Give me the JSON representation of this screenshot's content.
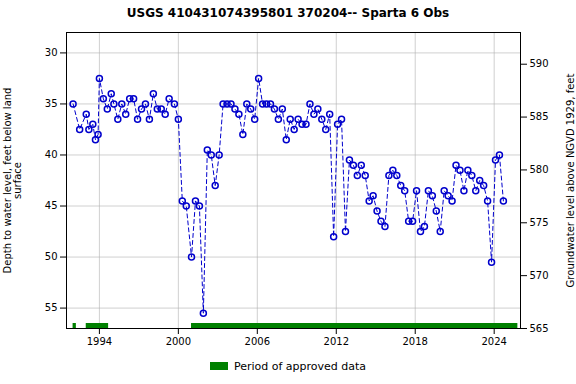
{
  "chart_data": {
    "type": "line",
    "title": "USGS 410431074395801 370204-- Sparta 6 Obs",
    "ylabel": "Depth to water level, feet below land\nsurface",
    "y2label": "Groundwater level above NGVD 1929, feet",
    "x": [
      1992.0,
      1992.5,
      1993.0,
      1993.2,
      1993.5,
      1993.7,
      1993.9,
      1994.0,
      1994.3,
      1994.6,
      1994.9,
      1995.1,
      1995.4,
      1995.7,
      1996.0,
      1996.3,
      1996.6,
      1996.9,
      1997.2,
      1997.5,
      1997.8,
      1998.1,
      1998.4,
      1998.7,
      1999.0,
      1999.3,
      1999.7,
      2000.0,
      2000.3,
      2000.6,
      2001.0,
      2001.3,
      2001.6,
      2001.9,
      2002.2,
      2002.5,
      2002.8,
      2003.1,
      2003.4,
      2003.7,
      2004.0,
      2004.3,
      2004.6,
      2004.9,
      2005.2,
      2005.5,
      2005.8,
      2006.1,
      2006.4,
      2006.7,
      2007.0,
      2007.3,
      2007.6,
      2007.9,
      2008.2,
      2008.5,
      2008.8,
      2009.1,
      2009.4,
      2009.7,
      2010.0,
      2010.3,
      2010.6,
      2010.9,
      2011.2,
      2011.5,
      2011.8,
      2012.1,
      2012.4,
      2012.7,
      2013.0,
      2013.3,
      2013.6,
      2013.9,
      2014.2,
      2014.5,
      2014.8,
      2015.1,
      2015.4,
      2015.7,
      2016.0,
      2016.3,
      2016.6,
      2016.9,
      2017.2,
      2017.5,
      2017.8,
      2018.1,
      2018.4,
      2018.7,
      2019.0,
      2019.3,
      2019.6,
      2019.9,
      2020.2,
      2020.5,
      2020.8,
      2021.1,
      2021.4,
      2021.7,
      2022.0,
      2022.3,
      2022.6,
      2022.9,
      2023.2,
      2023.5,
      2023.8,
      2024.1,
      2024.4,
      2024.7
    ],
    "values": [
      35.0,
      37.5,
      36.0,
      37.5,
      37.0,
      38.5,
      38.0,
      32.5,
      34.5,
      35.5,
      34.0,
      35.0,
      36.5,
      35.0,
      36.0,
      34.5,
      34.5,
      36.5,
      35.5,
      35.0,
      36.5,
      34.0,
      35.5,
      35.5,
      36.0,
      34.5,
      35.0,
      36.5,
      44.5,
      45.0,
      50.0,
      44.5,
      45.0,
      55.5,
      39.5,
      40.0,
      43.0,
      40.0,
      35.0,
      35.0,
      35.0,
      35.5,
      36.0,
      38.0,
      35.0,
      35.5,
      36.5,
      32.5,
      35.0,
      35.0,
      35.0,
      35.5,
      36.5,
      35.5,
      38.5,
      36.5,
      37.5,
      36.5,
      37.0,
      37.0,
      35.0,
      36.0,
      35.5,
      36.5,
      37.5,
      36.0,
      48.0,
      37.0,
      36.5,
      47.5,
      40.5,
      41.0,
      42.0,
      41.0,
      42.0,
      44.5,
      44.0,
      45.5,
      46.5,
      47.0,
      42.0,
      41.5,
      42.0,
      43.0,
      43.5,
      46.5,
      46.5,
      43.5,
      47.5,
      47.0,
      43.5,
      44.0,
      45.5,
      47.5,
      43.5,
      44.0,
      44.5,
      41.0,
      41.5,
      43.5,
      41.5,
      42.0,
      43.5,
      42.5,
      43.0,
      44.5,
      50.5,
      40.5,
      40.0,
      44.5
    ],
    "color": "#0000cc",
    "marker": "circle",
    "line_style": "dashed",
    "xlim": [
      1991.5,
      2026.0
    ],
    "xticks": [
      1994,
      2000,
      2006,
      2012,
      2018,
      2024
    ],
    "ylim": [
      57.0,
      28.0
    ],
    "yticks": [
      30,
      35,
      40,
      45,
      50,
      55
    ],
    "y2lim": [
      565.0,
      593.0
    ],
    "y2ticks": [
      565,
      570,
      575,
      580,
      585,
      590
    ],
    "grid": true,
    "legend": "bottom",
    "approved_periods": {
      "name": "Period of approved data",
      "color": "#008000",
      "periods": [
        [
          1992.0,
          1992.25
        ],
        [
          1993.0,
          1994.7
        ],
        [
          2001.0,
          2025.8
        ]
      ]
    }
  }
}
